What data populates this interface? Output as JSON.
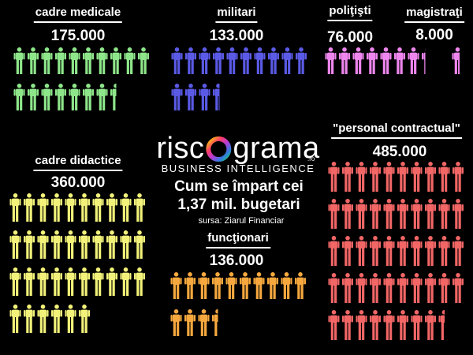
{
  "brand": {
    "name_pre": "risc",
    "name_post": "grama",
    "domain": ".ro",
    "tagline": "BUSINESS INTELLIGENCE"
  },
  "title": {
    "line1": "Cum se împart cei",
    "line2": "1,37 mil. bugetari"
  },
  "source": "sursa: Ziarul Financiar",
  "groups": [
    {
      "label": "cadre medicale",
      "value": "175.000",
      "color": "#8ee68a"
    },
    {
      "label": "militari",
      "value": "133.000",
      "color": "#5a5ae6"
    },
    {
      "label": "poliţişti",
      "value": "76.000",
      "color": "#ee86ee"
    },
    {
      "label": "magistraţi",
      "value": "8.000",
      "color": "#ee86ee"
    },
    {
      "label": "cadre didactice",
      "value": "360.000",
      "color": "#f2f27a"
    },
    {
      "label": "funcţionari",
      "value": "136.000",
      "color": "#f6a83e"
    },
    {
      "label": "\"personal contractual\"",
      "value": "485.000",
      "color": "#f26666"
    }
  ],
  "icon": "person-icon"
}
